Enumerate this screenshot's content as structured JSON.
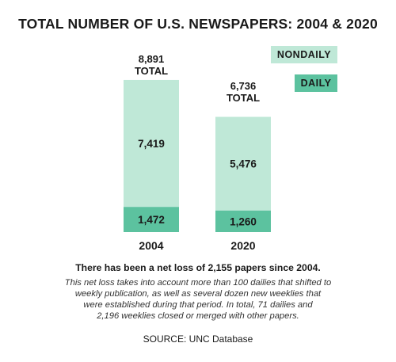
{
  "title": "TOTAL NUMBER OF U.S. NEWSPAPERS: 2004 & 2020",
  "legend": {
    "nondaily": "NONDAILY",
    "daily": "DAILY"
  },
  "colors": {
    "nondaily": "#bfe8d7",
    "daily": "#5cc29f",
    "text": "#1a1a1a"
  },
  "totals": [
    {
      "value": "8,891",
      "label": "TOTAL"
    },
    {
      "value": "6,736",
      "label": "TOTAL"
    }
  ],
  "chart_data": {
    "type": "bar",
    "stacked": true,
    "categories": [
      "2004",
      "2020"
    ],
    "series": [
      {
        "name": "DAILY",
        "values": [
          1472,
          1260
        ],
        "labels": [
          "1,472",
          "1,260"
        ]
      },
      {
        "name": "NONDAILY",
        "values": [
          7419,
          5476
        ],
        "labels": [
          "7,419",
          "5,476"
        ]
      }
    ],
    "totals": [
      8891,
      6736
    ],
    "title": "TOTAL NUMBER OF U.S. NEWSPAPERS: 2004 & 2020",
    "legend_position": "top-right",
    "grid": false
  },
  "subtitle": "There has been a net loss of 2,155 papers since 2004.",
  "note_lines": [
    "This net loss takes into account more than 100 dailies that shifted to",
    "weekly publication, as well as several dozen new weeklies that",
    "were established during that period. In total, 71 dailies and",
    "2,196 weeklies closed or merged with other papers."
  ],
  "source": "SOURCE: UNC Database"
}
